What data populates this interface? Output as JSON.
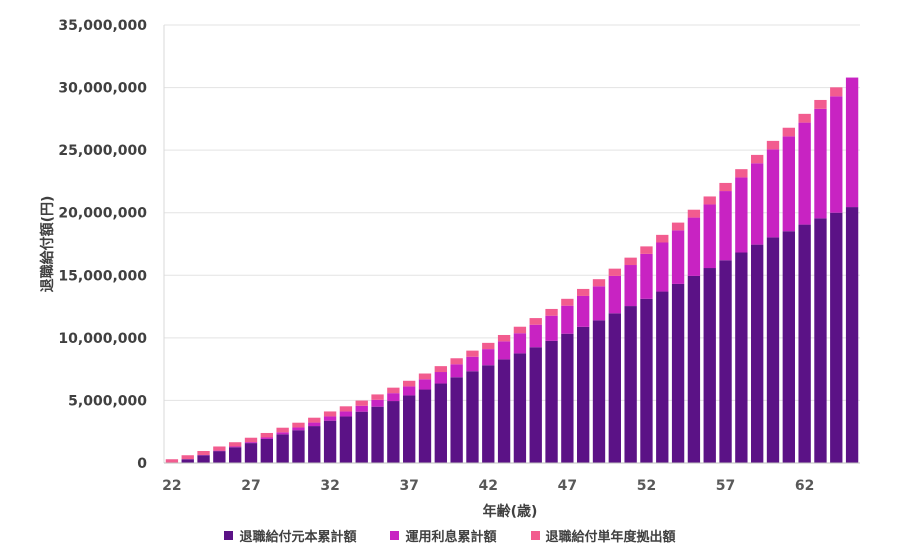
{
  "chart_data": {
    "type": "bar",
    "stacked": true,
    "title": "",
    "xlabel": "年齢(歳)",
    "ylabel": "退職給付額(円)",
    "ylim": [
      0,
      35000000
    ],
    "yticks": [
      "0",
      "5,000,000",
      "10,000,000",
      "15,000,000",
      "20,000,000",
      "25,000,000",
      "30,000,000",
      "35,000,000"
    ],
    "ytick_values": [
      0,
      5000000,
      10000000,
      15000000,
      20000000,
      25000000,
      30000000,
      35000000
    ],
    "xtick_labels": [
      "22",
      "27",
      "32",
      "37",
      "42",
      "47",
      "52",
      "57",
      "62"
    ],
    "legend_position": "bottom",
    "grid": true,
    "categories": [
      22,
      23,
      24,
      25,
      26,
      27,
      28,
      29,
      30,
      31,
      32,
      33,
      34,
      35,
      36,
      37,
      38,
      39,
      40,
      41,
      42,
      43,
      44,
      45,
      46,
      47,
      48,
      49,
      50,
      51,
      52,
      53,
      54,
      55,
      56,
      57,
      58,
      59,
      60,
      61,
      62,
      63,
      64,
      65
    ],
    "series": [
      {
        "name": "退職給付元本累計額",
        "color": "#5b1286",
        "values": [
          0,
          300000,
          620000,
          950000,
          1260000,
          1590000,
          1920000,
          2290000,
          2620000,
          2950000,
          3380000,
          3720000,
          4100000,
          4500000,
          4950000,
          5400000,
          5870000,
          6350000,
          6850000,
          7330000,
          7810000,
          8280000,
          8760000,
          9250000,
          9760000,
          10330000,
          10880000,
          11400000,
          11960000,
          12540000,
          13120000,
          13700000,
          14310000,
          14950000,
          15580000,
          16200000,
          16820000,
          17450000,
          18030000,
          18520000,
          19050000,
          19550000,
          20000000,
          20450000
        ]
      },
      {
        "name": "運用利息累計額",
        "color": "#c823c2",
        "values": [
          0,
          10000,
          20000,
          40000,
          60000,
          80000,
          120000,
          160000,
          220000,
          280000,
          340000,
          400000,
          470000,
          550000,
          630000,
          720000,
          820000,
          920000,
          1040000,
          1160000,
          1290000,
          1440000,
          1610000,
          1800000,
          2010000,
          2240000,
          2470000,
          2720000,
          2990000,
          3280000,
          3590000,
          3920000,
          4280000,
          4660000,
          5080000,
          5530000,
          6000000,
          6500000,
          7030000,
          7580000,
          8150000,
          8750000,
          9300000,
          10350000
        ]
      },
      {
        "name": "退職給付単年度拠出額",
        "color": "#f25c8f",
        "values": [
          300000,
          310000,
          320000,
          330000,
          340000,
          350000,
          360000,
          370000,
          380000,
          390000,
          400000,
          410000,
          420000,
          430000,
          440000,
          450000,
          460000,
          470000,
          480000,
          490000,
          500000,
          510000,
          520000,
          530000,
          540000,
          550000,
          560000,
          570000,
          580000,
          590000,
          600000,
          610000,
          620000,
          630000,
          640000,
          650000,
          660000,
          670000,
          680000,
          690000,
          700000,
          710000,
          720000,
          0
        ]
      }
    ]
  }
}
